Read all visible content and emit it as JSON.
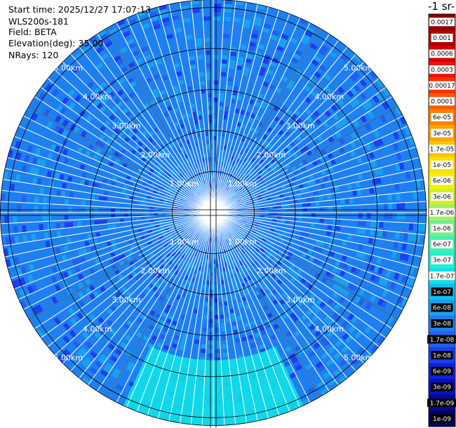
{
  "header": {
    "start_time": "Start time: 2025/12/27 17:07:13",
    "instrument": "WLS200s-181",
    "field": "Field: BETA",
    "elevation": "Elevation(deg): 35.00",
    "nrays": "NRays: 120"
  },
  "colorbar": {
    "title": "-1 sr-",
    "labels": [
      "0.0017",
      "0.001",
      "0.0006",
      "0.0003",
      "0.00017",
      "0.0001",
      "6e-05",
      "3e-05",
      "1.7e-05",
      "1e-05",
      "6e-06",
      "3e-06",
      "1.7e-06",
      "1e-06",
      "6e-07",
      "3e-07",
      "1.7e-07",
      "1e-07",
      "6e-08",
      "3e-08",
      "1.7e-08",
      "1e-08",
      "6e-09",
      "3e-09",
      "1.7e-09",
      "1e-09"
    ],
    "colors": [
      "#8b0000",
      "#b00000",
      "#d40000",
      "#f01010",
      "#ff3000",
      "#ff5a00",
      "#ff8000",
      "#ffa500",
      "#ffc400",
      "#ffe000",
      "#f0f000",
      "#d0f020",
      "#a0f060",
      "#70f090",
      "#40f0b0",
      "#20f0d0",
      "#10e0e8",
      "#10c0f0",
      "#1aa0f0",
      "#1e80f0",
      "#2060f0",
      "#1a40f0",
      "#1020e0",
      "#0a10c0",
      "#060890",
      "#040460"
    ],
    "dark_text_from": 17
  },
  "chart_data": {
    "type": "heatmap",
    "projection": "polar-ppi",
    "field": "BETA",
    "nrays": 120,
    "range_unit": "km",
    "max_range_km": 5.2,
    "range_rings_km": [
      1,
      2,
      3,
      4,
      5
    ],
    "range_labels": [
      "1.00km",
      "2.00km",
      "3.00km",
      "4.00km",
      "5.00km"
    ],
    "label_angles_deg": [
      45,
      135,
      225,
      315
    ],
    "sectors": [
      {
        "az_from": 155,
        "az_to": 205,
        "range_from_km": 3.6,
        "range_to_km": 5.2,
        "value": "1.7e-07"
      }
    ],
    "background_value": "3e-08"
  }
}
